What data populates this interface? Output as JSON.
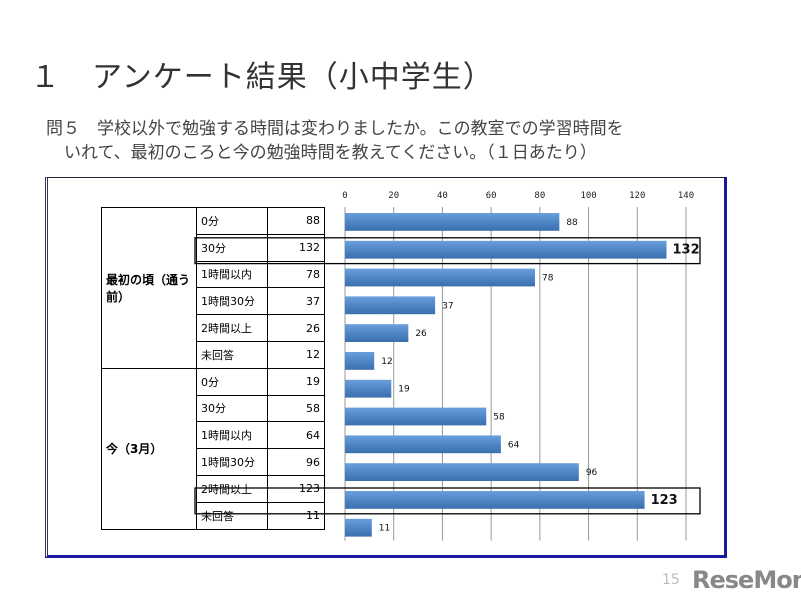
{
  "title": "１　アンケート結果（小中学生）",
  "question_line1": "問５　学校以外で勉強する時間は変わりましたか。この教室での学習時間を",
  "question_line2": "いれて、最初のころと今の勉強時間を教えてください。（１日あたり）",
  "page_number": "15",
  "logo": "ReseMom",
  "chart_data": {
    "type": "bar",
    "orientation": "horizontal",
    "groups": [
      {
        "label": "最初の頃（通う前）",
        "categories": [
          "0分",
          "30分",
          "1時間以内",
          "1時間30分",
          "2時間以上",
          "未回答"
        ],
        "values": [
          88,
          132,
          78,
          37,
          26,
          12
        ]
      },
      {
        "label": "今（3月）",
        "categories": [
          "0分",
          "30分",
          "1時間以内",
          "1時間30分",
          "2時間以上",
          "未回答"
        ],
        "values": [
          19,
          58,
          64,
          96,
          123,
          11
        ]
      }
    ],
    "xlim": [
      0,
      140
    ],
    "xticks": [
      0,
      20,
      40,
      60,
      80,
      100,
      120,
      140
    ],
    "grid": true,
    "highlighted": [
      {
        "group": 0,
        "index": 1
      },
      {
        "group": 1,
        "index": 4
      }
    ],
    "bar_color": "#4f86c6"
  }
}
